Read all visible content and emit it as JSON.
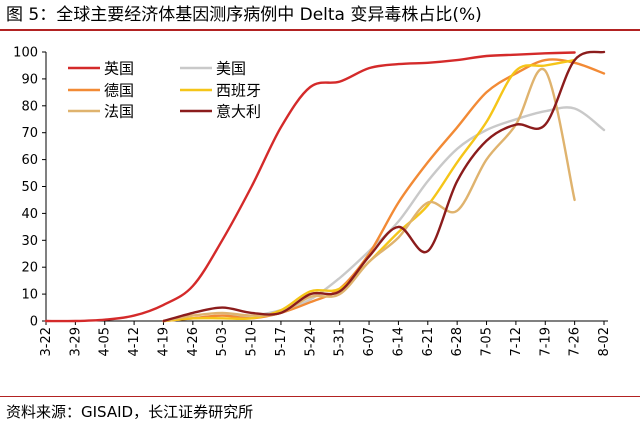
{
  "figure": {
    "title": "图 5：全球主要经济体基因测序病例中 Delta 变异毒株占比(%)",
    "source": "资料来源：GISAID，长江证券研究所"
  },
  "chart_data": {
    "type": "line",
    "title": "",
    "xlabel": "",
    "ylabel": "",
    "ylim": [
      0,
      100
    ],
    "yticks": [
      0,
      10,
      20,
      30,
      40,
      50,
      60,
      70,
      80,
      90,
      100
    ],
    "categories": [
      "3-22",
      "3-29",
      "4-05",
      "4-12",
      "4-19",
      "4-26",
      "5-03",
      "5-10",
      "5-17",
      "5-24",
      "5-31",
      "6-07",
      "6-14",
      "6-21",
      "6-28",
      "7-05",
      "7-12",
      "7-19",
      "7-26",
      "8-02"
    ],
    "grid": false,
    "legend_position": "top-left",
    "series": [
      {
        "name": "英国",
        "color": "#d42a2a",
        "values": [
          0,
          0,
          0.5,
          2,
          6,
          13,
          30,
          50,
          72,
          87,
          89,
          94,
          95.5,
          96,
          97,
          98.5,
          99,
          99.5,
          99.8,
          null
        ]
      },
      {
        "name": "美国",
        "color": "#c9c9c9",
        "values": [
          null,
          null,
          null,
          null,
          0,
          1,
          2,
          2,
          4,
          8,
          16,
          26,
          37,
          52,
          64,
          71,
          75,
          78,
          79,
          71
        ]
      },
      {
        "name": "德国",
        "color": "#f28a35",
        "values": [
          null,
          null,
          null,
          null,
          0,
          1,
          2,
          1,
          3,
          7,
          12,
          25,
          44,
          59,
          72,
          85,
          92,
          97,
          96,
          92
        ]
      },
      {
        "name": "西班牙",
        "color": "#f5c518",
        "values": [
          null,
          null,
          null,
          null,
          0,
          1,
          1,
          1,
          4,
          11,
          12,
          22,
          33,
          43,
          59,
          74,
          93,
          95,
          97,
          null
        ]
      },
      {
        "name": "法国",
        "color": "#dfb36e",
        "values": [
          null,
          null,
          null,
          null,
          0,
          2,
          3,
          2,
          3,
          9,
          10,
          22,
          31,
          44,
          41,
          60,
          73,
          93,
          45,
          null
        ]
      },
      {
        "name": "意大利",
        "color": "#8b1c1c",
        "values": [
          null,
          null,
          null,
          null,
          0,
          3,
          5,
          3,
          3,
          10,
          11,
          24,
          35,
          26,
          52,
          67,
          73,
          73,
          97,
          100
        ]
      }
    ]
  }
}
